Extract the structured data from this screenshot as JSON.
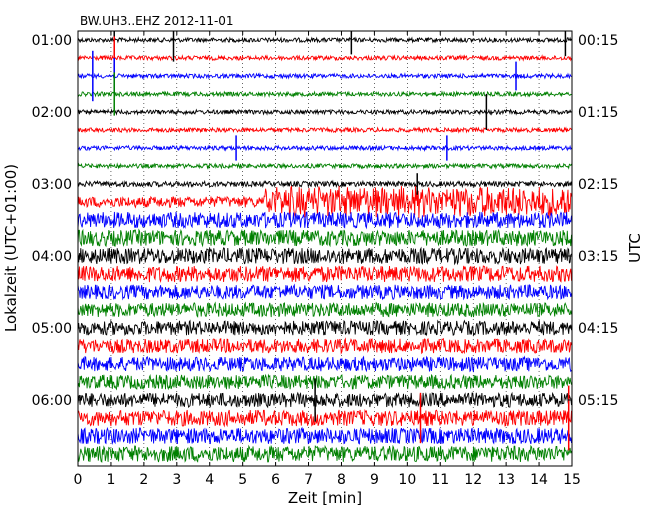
{
  "chart_data": {
    "type": "line",
    "title": "BW.UH3..EHZ 2012-11-01",
    "xlabel": "Zeit  [min]",
    "ylabel_left": "Lokalzeit (UTC+01:00)",
    "ylabel_right": "UTC",
    "xlim": [
      0,
      15
    ],
    "x_ticks": [
      "0",
      "1",
      "2",
      "3",
      "4",
      "5",
      "6",
      "7",
      "8",
      "9",
      "10",
      "11",
      "12",
      "13",
      "14",
      "15"
    ],
    "left_hour_labels": [
      "01:00",
      "02:00",
      "03:00",
      "04:00",
      "05:00",
      "06:00"
    ],
    "right_hour_labels": [
      "00:15",
      "01:15",
      "02:15",
      "03:15",
      "04:15",
      "05:15"
    ],
    "grid": "vertical dotted lines at each minute",
    "trace_colors": [
      "#000000",
      "#ff0000",
      "#0000ff",
      "#008000"
    ],
    "trace_count": 24,
    "minutes_per_trace": 15,
    "trace_amplitude": [
      0.12,
      0.12,
      0.12,
      0.12,
      0.12,
      0.12,
      0.12,
      0.12,
      0.15,
      0.3,
      0.45,
      0.45,
      0.45,
      0.45,
      0.4,
      0.4,
      0.4,
      0.4,
      0.4,
      0.4,
      0.4,
      0.45,
      0.45,
      0.45
    ],
    "spikes": [
      {
        "trace": 0,
        "minute": 1.1,
        "amp": 1.8
      },
      {
        "trace": 0,
        "minute": 2.9,
        "amp": 1.2
      },
      {
        "trace": 0,
        "minute": 8.3,
        "amp": 0.8
      },
      {
        "trace": 0,
        "minute": 14.8,
        "amp": 0.9
      },
      {
        "trace": 1,
        "minute": 1.1,
        "amp": 1.2
      },
      {
        "trace": 2,
        "minute": 0.45,
        "amp": 1.4
      },
      {
        "trace": 2,
        "minute": 1.1,
        "amp": 1.0
      },
      {
        "trace": 2,
        "minute": 13.3,
        "amp": 0.8
      },
      {
        "trace": 3,
        "minute": 1.1,
        "amp": 1.2
      },
      {
        "trace": 4,
        "minute": 12.4,
        "amp": 1.0
      },
      {
        "trace": 6,
        "minute": 4.8,
        "amp": 0.7
      },
      {
        "trace": 6,
        "minute": 11.2,
        "amp": 0.7
      },
      {
        "trace": 8,
        "minute": 10.3,
        "amp": 0.6
      },
      {
        "trace": 20,
        "minute": 7.2,
        "amp": 1.2
      },
      {
        "trace": 21,
        "minute": 10.4,
        "amp": 1.4
      },
      {
        "trace": 21,
        "minute": 14.9,
        "amp": 1.8
      }
    ],
    "bursts": [
      {
        "trace": 9,
        "start_minute": 5.6,
        "end_minute": 15,
        "amp": 0.95
      }
    ]
  }
}
